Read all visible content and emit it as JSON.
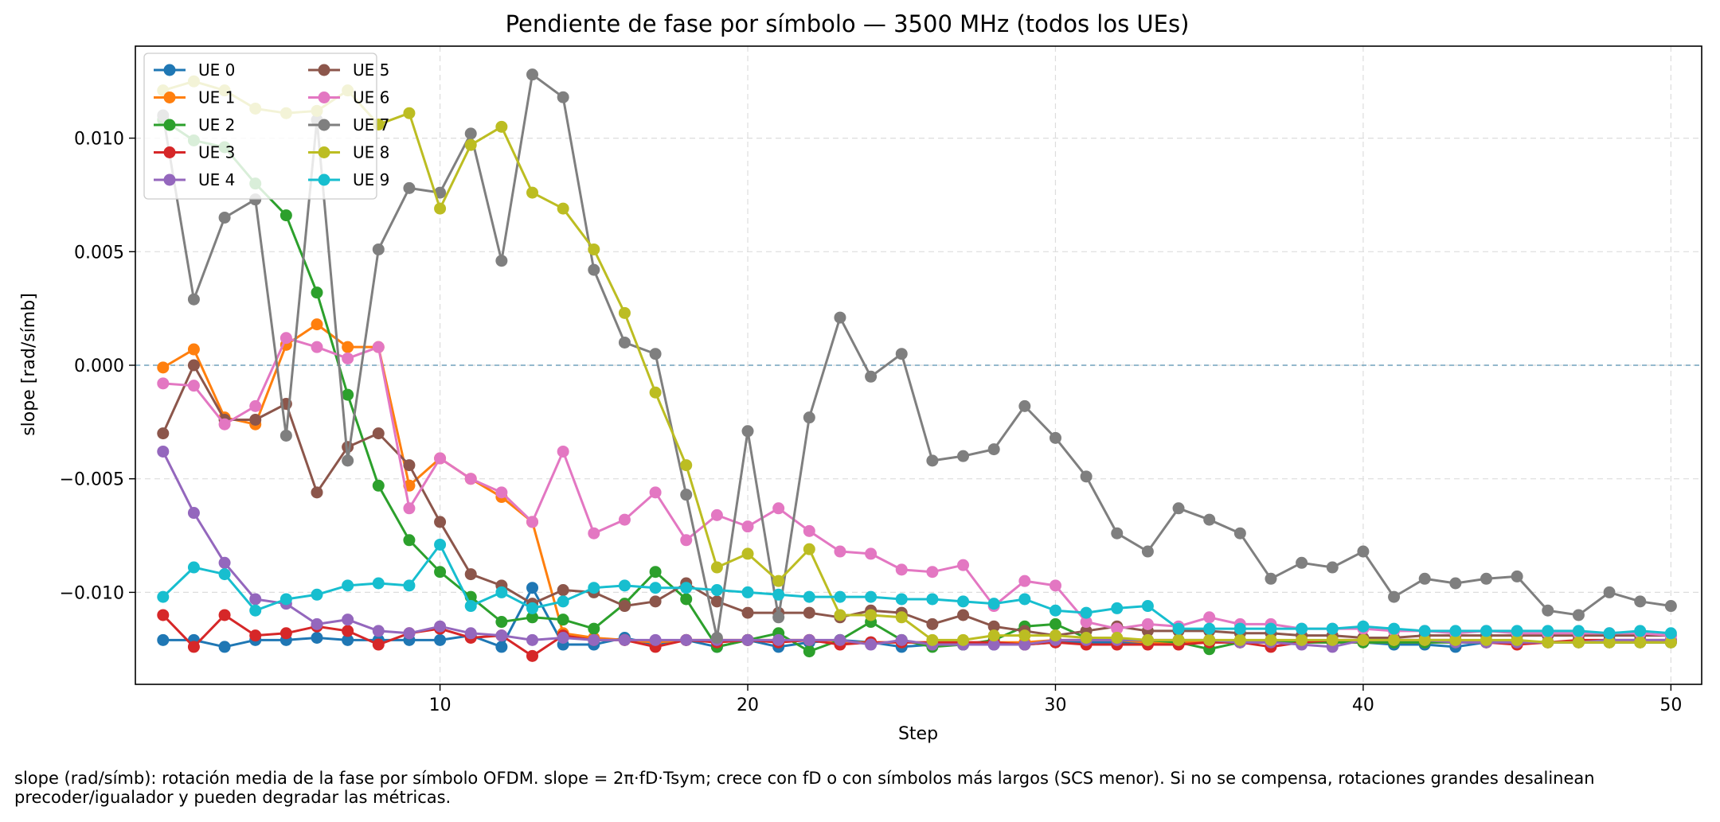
{
  "chart_data": {
    "type": "line",
    "title": "Pendiente de fase por símbolo — 3500 MHz (todos los UEs)",
    "xlabel": "Step",
    "ylabel": "slope [rad/símb]",
    "xlim": [
      0.1,
      51
    ],
    "ylim": [
      -0.01405,
      0.01405
    ],
    "xticks": [
      10,
      20,
      30,
      40,
      50
    ],
    "xtick_labels": [
      "10",
      "20",
      "30",
      "40",
      "50"
    ],
    "yticks": [
      -0.01,
      -0.005,
      0.0,
      0.005,
      0.01
    ],
    "ytick_labels": [
      "−0.010",
      "−0.005",
      "0.000",
      "0.005",
      "0.010"
    ],
    "grid": true,
    "reference_line_y": 0.0,
    "reference_line_color": "#72a4bd",
    "legend_position": "upper-left",
    "x": [
      1,
      2,
      3,
      4,
      5,
      6,
      7,
      8,
      9,
      10,
      11,
      12,
      13,
      14,
      15,
      16,
      17,
      18,
      19,
      20,
      21,
      22,
      23,
      24,
      25,
      26,
      27,
      28,
      29,
      30,
      31,
      32,
      33,
      34,
      35,
      36,
      37,
      38,
      39,
      40,
      41,
      42,
      43,
      44,
      45,
      46,
      47,
      48,
      49,
      50
    ],
    "series": [
      {
        "name": "UE 0",
        "color": "#1f77b4",
        "values": [
          -0.0121,
          -0.0121,
          -0.0124,
          -0.0121,
          -0.0121,
          -0.012,
          -0.0121,
          -0.0121,
          -0.0121,
          -0.0121,
          -0.0119,
          -0.0124,
          -0.0098,
          -0.0123,
          -0.0123,
          -0.012,
          -0.0123,
          -0.0121,
          -0.0124,
          -0.0121,
          -0.0124,
          -0.0122,
          -0.0121,
          -0.0122,
          -0.0124,
          -0.0123,
          -0.0123,
          -0.0123,
          -0.0123,
          -0.0122,
          -0.0122,
          -0.0122,
          -0.0122,
          -0.0122,
          -0.0122,
          -0.0122,
          -0.0122,
          -0.0122,
          -0.0122,
          -0.0122,
          -0.0123,
          -0.0123,
          -0.0124,
          -0.0122,
          -0.0122,
          -0.0122,
          -0.0122,
          -0.0122,
          -0.0122,
          -0.0122
        ]
      },
      {
        "name": "UE 1",
        "color": "#ff7f0e",
        "values": [
          -0.0001,
          0.0007,
          -0.0023,
          -0.0026,
          0.0009,
          0.0018,
          0.0008,
          0.0008,
          -0.0053,
          -0.0041,
          -0.005,
          -0.0058,
          -0.0069,
          -0.0118,
          -0.012,
          -0.0121,
          -0.0122,
          -0.0121,
          -0.0121,
          -0.0121,
          -0.0121,
          -0.0121,
          -0.0122,
          -0.0122,
          -0.0122,
          -0.0122,
          -0.0122,
          -0.0122,
          -0.0122,
          -0.0121,
          -0.0121,
          -0.0121,
          -0.0122,
          -0.0122,
          -0.0122,
          -0.0122,
          -0.0122,
          -0.0122,
          -0.0122,
          -0.0122,
          -0.0122,
          -0.0122,
          -0.0122,
          -0.0122,
          -0.0122,
          -0.0122,
          -0.0122,
          -0.0122,
          -0.0122,
          -0.0122
        ]
      },
      {
        "name": "UE 2",
        "color": "#2ca02c",
        "values": [
          0.0108,
          0.0099,
          0.0096,
          0.008,
          0.0066,
          0.0032,
          -0.0013,
          -0.0053,
          -0.0077,
          -0.0091,
          -0.0102,
          -0.0113,
          -0.0111,
          -0.0112,
          -0.0116,
          -0.0105,
          -0.0091,
          -0.0103,
          -0.0124,
          -0.0121,
          -0.0118,
          -0.0126,
          -0.0121,
          -0.0113,
          -0.0121,
          -0.0124,
          -0.0123,
          -0.0121,
          -0.0115,
          -0.0114,
          -0.012,
          -0.0121,
          -0.0121,
          -0.0122,
          -0.0125,
          -0.0122,
          -0.0122,
          -0.0122,
          -0.0122,
          -0.0122,
          -0.0122,
          -0.0122,
          -0.0122,
          -0.0122,
          -0.0122,
          -0.0122,
          -0.0122,
          -0.0122,
          -0.0122,
          -0.0122
        ]
      },
      {
        "name": "UE 3",
        "color": "#d62728",
        "values": [
          -0.011,
          -0.0124,
          -0.011,
          -0.0119,
          -0.0118,
          -0.0115,
          -0.0117,
          -0.0123,
          -0.0118,
          -0.0116,
          -0.012,
          -0.0119,
          -0.0128,
          -0.0119,
          -0.0121,
          -0.0121,
          -0.0124,
          -0.0121,
          -0.0122,
          -0.0121,
          -0.0122,
          -0.0121,
          -0.0123,
          -0.0122,
          -0.0122,
          -0.0122,
          -0.0122,
          -0.0122,
          -0.0123,
          -0.0122,
          -0.0123,
          -0.0123,
          -0.0123,
          -0.0123,
          -0.0122,
          -0.0122,
          -0.0124,
          -0.0122,
          -0.0121,
          -0.0121,
          -0.0121,
          -0.0121,
          -0.0121,
          -0.0122,
          -0.0123,
          -0.0122,
          -0.0121,
          -0.0121,
          -0.0121,
          -0.0121
        ]
      },
      {
        "name": "UE 4",
        "color": "#9467bd",
        "values": [
          -0.0038,
          -0.0065,
          -0.0087,
          -0.0103,
          -0.0105,
          -0.0114,
          -0.0112,
          -0.0117,
          -0.0118,
          -0.0115,
          -0.0118,
          -0.0119,
          -0.0121,
          -0.012,
          -0.0121,
          -0.0121,
          -0.0121,
          -0.0121,
          -0.0121,
          -0.0121,
          -0.0121,
          -0.0121,
          -0.0121,
          -0.0123,
          -0.0121,
          -0.0123,
          -0.0123,
          -0.0123,
          -0.0123,
          -0.0121,
          -0.0121,
          -0.0121,
          -0.0121,
          -0.0121,
          -0.0121,
          -0.0122,
          -0.0122,
          -0.0123,
          -0.0124,
          -0.0121,
          -0.0121,
          -0.0121,
          -0.0122,
          -0.0122,
          -0.0122,
          -0.0122,
          -0.0122,
          -0.0121,
          -0.0121,
          -0.0121
        ]
      },
      {
        "name": "UE 5",
        "color": "#8c564b",
        "values": [
          -0.003,
          0.0,
          -0.0024,
          -0.0024,
          -0.0017,
          -0.0056,
          -0.0036,
          -0.003,
          -0.0044,
          -0.0069,
          -0.0092,
          -0.0097,
          -0.0105,
          -0.0099,
          -0.01,
          -0.0106,
          -0.0104,
          -0.0096,
          -0.0104,
          -0.0109,
          -0.0109,
          -0.0109,
          -0.0111,
          -0.0108,
          -0.0109,
          -0.0114,
          -0.011,
          -0.0115,
          -0.0117,
          -0.0119,
          -0.0117,
          -0.0115,
          -0.0117,
          -0.0117,
          -0.0117,
          -0.0118,
          -0.0118,
          -0.0119,
          -0.0119,
          -0.012,
          -0.012,
          -0.0119,
          -0.0119,
          -0.0119,
          -0.0119,
          -0.0119,
          -0.0119,
          -0.0119,
          -0.0119,
          -0.0119
        ]
      },
      {
        "name": "UE 6",
        "color": "#e377c2",
        "values": [
          -0.0008,
          -0.0009,
          -0.0026,
          -0.0018,
          0.0012,
          0.0008,
          0.0003,
          0.0008,
          -0.0063,
          -0.0041,
          -0.005,
          -0.0056,
          -0.0069,
          -0.0038,
          -0.0074,
          -0.0068,
          -0.0056,
          -0.0077,
          -0.0066,
          -0.0071,
          -0.0063,
          -0.0073,
          -0.0082,
          -0.0083,
          -0.009,
          -0.0091,
          -0.0088,
          -0.0106,
          -0.0095,
          -0.0097,
          -0.0113,
          -0.0116,
          -0.0114,
          -0.0115,
          -0.0111,
          -0.0114,
          -0.0114,
          -0.0116,
          -0.0116,
          -0.0116,
          -0.0117,
          -0.0117,
          -0.0118,
          -0.0117,
          -0.0118,
          -0.0118,
          -0.0118,
          -0.0118,
          -0.0118,
          -0.0119
        ]
      },
      {
        "name": "UE 7",
        "color": "#7f7f7f",
        "values": [
          0.011,
          0.0029,
          0.0065,
          0.0073,
          -0.0031,
          0.0108,
          -0.0042,
          0.0051,
          0.0078,
          0.0076,
          0.0102,
          0.0046,
          0.0128,
          0.0118,
          0.0042,
          0.001,
          0.0005,
          -0.0057,
          -0.012,
          -0.0029,
          -0.0111,
          -0.0023,
          0.0021,
          -0.0005,
          0.0005,
          -0.0042,
          -0.004,
          -0.0037,
          -0.0018,
          -0.0032,
          -0.0049,
          -0.0074,
          -0.0082,
          -0.0063,
          -0.0068,
          -0.0074,
          -0.0094,
          -0.0087,
          -0.0089,
          -0.0082,
          -0.0102,
          -0.0094,
          -0.0096,
          -0.0094,
          -0.0093,
          -0.0108,
          -0.011,
          -0.01,
          -0.0104,
          -0.0106
        ]
      },
      {
        "name": "UE 8",
        "color": "#bcbd22",
        "values": [
          0.0121,
          0.0125,
          0.0121,
          0.0113,
          0.0111,
          0.0112,
          0.0121,
          0.0106,
          0.0111,
          0.0069,
          0.0097,
          0.0105,
          0.0076,
          0.0069,
          0.0051,
          0.0023,
          -0.0012,
          -0.0044,
          -0.0089,
          -0.0083,
          -0.0095,
          -0.0081,
          -0.011,
          -0.011,
          -0.0111,
          -0.0121,
          -0.0121,
          -0.0119,
          -0.0119,
          -0.0119,
          -0.012,
          -0.012,
          -0.0121,
          -0.0121,
          -0.0121,
          -0.0121,
          -0.0121,
          -0.0121,
          -0.0121,
          -0.0121,
          -0.0121,
          -0.0121,
          -0.0121,
          -0.0121,
          -0.0121,
          -0.0122,
          -0.0122,
          -0.0122,
          -0.0122,
          -0.0122
        ]
      },
      {
        "name": "UE 9",
        "color": "#17becf",
        "values": [
          -0.0102,
          -0.0089,
          -0.0092,
          -0.0108,
          -0.0103,
          -0.0101,
          -0.0097,
          -0.0096,
          -0.0097,
          -0.0079,
          -0.0106,
          -0.01,
          -0.0107,
          -0.0104,
          -0.0098,
          -0.0097,
          -0.0098,
          -0.0098,
          -0.0099,
          -0.01,
          -0.0101,
          -0.0102,
          -0.0102,
          -0.0102,
          -0.0103,
          -0.0103,
          -0.0104,
          -0.0105,
          -0.0103,
          -0.0108,
          -0.0109,
          -0.0107,
          -0.0106,
          -0.0116,
          -0.0116,
          -0.0116,
          -0.0116,
          -0.0116,
          -0.0116,
          -0.0115,
          -0.0116,
          -0.0117,
          -0.0117,
          -0.0117,
          -0.0117,
          -0.0117,
          -0.0117,
          -0.0118,
          -0.0117,
          -0.0118
        ]
      }
    ]
  },
  "caption_lines": [
    "slope (rad/símb): rotación media de la fase por símbolo OFDM. slope = 2π·fD·Tsym; crece con fD o con símbolos más largos (SCS menor). Si no se compensa, rotaciones grandes desalinean",
    "precoder/igualador y pueden degradar las métricas."
  ]
}
